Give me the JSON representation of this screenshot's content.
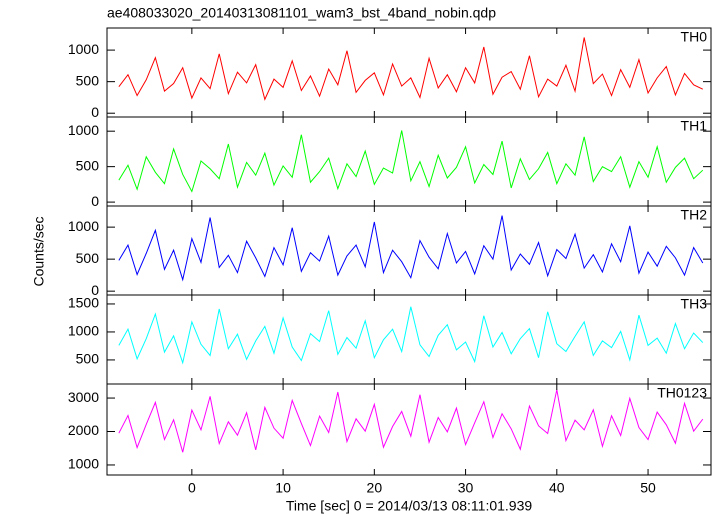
{
  "chart_data": [
    {
      "type": "line",
      "title": "ae408033020_20140313081101_wam3_bst_4band_nobin.qdp",
      "x": [
        -8,
        -7,
        -6,
        -5,
        -4,
        -3,
        -2,
        -1,
        0,
        1,
        2,
        3,
        4,
        5,
        6,
        7,
        8,
        9,
        10,
        11,
        12,
        13,
        14,
        15,
        16,
        17,
        18,
        19,
        20,
        21,
        22,
        23,
        24,
        25,
        26,
        27,
        28,
        29,
        30,
        31,
        32,
        33,
        34,
        35,
        36,
        37,
        38,
        39,
        40,
        41,
        42,
        43,
        44,
        45,
        46,
        47,
        48,
        49,
        50,
        51,
        52,
        53,
        54,
        55,
        56
      ],
      "series": [
        {
          "name": "TH0",
          "color": "#ff0000",
          "values": [
            420,
            610,
            280,
            530,
            880,
            350,
            470,
            720,
            240,
            560,
            390,
            940,
            310,
            650,
            480,
            770,
            220,
            540,
            410,
            830,
            360,
            590,
            270,
            700,
            450,
            990,
            330,
            520,
            640,
            290,
            780,
            430,
            560,
            250,
            870,
            400,
            610,
            340,
            720,
            480,
            1050,
            300,
            570,
            660,
            380,
            910,
            260,
            540,
            430,
            760,
            350,
            1200,
            470,
            620,
            280,
            690,
            410,
            850,
            320,
            560,
            740,
            290,
            630,
            450,
            380
          ]
        }
      ],
      "xlim": [
        -9.3,
        56.9
      ],
      "xticks": [
        0,
        10,
        20,
        30,
        40,
        50
      ],
      "ylim": [
        -60,
        1350
      ],
      "yticks": [
        0,
        500,
        1000
      ]
    },
    {
      "type": "line",
      "x": [
        -8,
        -7,
        -6,
        -5,
        -4,
        -3,
        -2,
        -1,
        0,
        1,
        2,
        3,
        4,
        5,
        6,
        7,
        8,
        9,
        10,
        11,
        12,
        13,
        14,
        15,
        16,
        17,
        18,
        19,
        20,
        21,
        22,
        23,
        24,
        25,
        26,
        27,
        28,
        29,
        30,
        31,
        32,
        33,
        34,
        35,
        36,
        37,
        38,
        39,
        40,
        41,
        42,
        43,
        44,
        45,
        46,
        47,
        48,
        49,
        50,
        51,
        52,
        53,
        54,
        55,
        56
      ],
      "series": [
        {
          "name": "TH1",
          "color": "#00ff00",
          "values": [
            310,
            520,
            180,
            640,
            420,
            260,
            750,
            390,
            150,
            580,
            470,
            330,
            820,
            210,
            560,
            380,
            690,
            240,
            510,
            350,
            950,
            280,
            430,
            620,
            190,
            540,
            360,
            720,
            250,
            480,
            410,
            1010,
            300,
            570,
            220,
            660,
            340,
            490,
            780,
            270,
            530,
            390,
            860,
            200,
            610,
            320,
            470,
            700,
            260,
            540,
            380,
            920,
            290,
            500,
            430,
            640,
            210,
            570,
            350,
            780,
            280,
            490,
            620,
            330,
            450
          ]
        }
      ],
      "xlim": [
        -9.3,
        56.9
      ],
      "xticks": [
        0,
        10,
        20,
        30,
        40,
        50
      ],
      "ylim": [
        -55,
        1200
      ],
      "yticks": [
        0,
        500,
        1000
      ]
    },
    {
      "type": "line",
      "y_label": "Counts/sec",
      "x": [
        -8,
        -7,
        -6,
        -5,
        -4,
        -3,
        -2,
        -1,
        0,
        1,
        2,
        3,
        4,
        5,
        6,
        7,
        8,
        9,
        10,
        11,
        12,
        13,
        14,
        15,
        16,
        17,
        18,
        19,
        20,
        21,
        22,
        23,
        24,
        25,
        26,
        27,
        28,
        29,
        30,
        31,
        32,
        33,
        34,
        35,
        36,
        37,
        38,
        39,
        40,
        41,
        42,
        43,
        44,
        45,
        46,
        47,
        48,
        49,
        50,
        51,
        52,
        53,
        54,
        55,
        56
      ],
      "series": [
        {
          "name": "TH2",
          "color": "#0000ff",
          "values": [
            480,
            720,
            260,
            590,
            950,
            340,
            640,
            180,
            820,
            450,
            1150,
            370,
            560,
            290,
            780,
            520,
            230,
            680,
            410,
            990,
            310,
            600,
            470,
            860,
            250,
            550,
            720,
            380,
            1080,
            290,
            640,
            460,
            210,
            790,
            530,
            350,
            900,
            440,
            620,
            270,
            710,
            500,
            1180,
            330,
            580,
            420,
            760,
            240,
            650,
            510,
            890,
            360,
            570,
            300,
            740,
            460,
            1020,
            280,
            610,
            390,
            700,
            520,
            250,
            680,
            440
          ]
        }
      ],
      "xlim": [
        -9.3,
        56.9
      ],
      "xticks": [
        0,
        10,
        20,
        30,
        40,
        50
      ],
      "ylim": [
        -60,
        1330
      ],
      "yticks": [
        0,
        500,
        1000
      ]
    },
    {
      "type": "line",
      "x": [
        -8,
        -7,
        -6,
        -5,
        -4,
        -3,
        -2,
        -1,
        0,
        1,
        2,
        3,
        4,
        5,
        6,
        7,
        8,
        9,
        10,
        11,
        12,
        13,
        14,
        15,
        16,
        17,
        18,
        19,
        20,
        21,
        22,
        23,
        24,
        25,
        26,
        27,
        28,
        29,
        30,
        31,
        32,
        33,
        34,
        35,
        36,
        37,
        38,
        39,
        40,
        41,
        42,
        43,
        44,
        45,
        46,
        47,
        48,
        49,
        50,
        51,
        52,
        53,
        54,
        55,
        56
      ],
      "series": [
        {
          "name": "TH3",
          "color": "#00ffff",
          "values": [
            760,
            1050,
            520,
            880,
            1320,
            640,
            930,
            450,
            1180,
            780,
            580,
            1410,
            700,
            960,
            510,
            840,
            1100,
            620,
            1250,
            730,
            490,
            970,
            830,
            1380,
            600,
            900,
            710,
            1200,
            540,
            860,
            1050,
            650,
            1450,
            770,
            560,
            940,
            1130,
            680,
            820,
            470,
            1290,
            730,
            990,
            610,
            880,
            1060,
            540,
            1360,
            790,
            650,
            920,
            1180,
            580,
            840,
            720,
            1010,
            500,
            1300,
            760,
            890,
            620,
            1150,
            700,
            980,
            810
          ]
        }
      ],
      "xlim": [
        -9.3,
        56.9
      ],
      "xticks": [
        0,
        10,
        20,
        30,
        40,
        50
      ],
      "ylim": [
        70,
        1660
      ],
      "yticks": [
        500,
        1000,
        1500
      ]
    },
    {
      "type": "line",
      "x_label": "Time [sec] 0 = 2014/03/13 08:11:01.939",
      "x": [
        -8,
        -7,
        -6,
        -5,
        -4,
        -3,
        -2,
        -1,
        0,
        1,
        2,
        3,
        4,
        5,
        6,
        7,
        8,
        9,
        10,
        11,
        12,
        13,
        14,
        15,
        16,
        17,
        18,
        19,
        20,
        21,
        22,
        23,
        24,
        25,
        26,
        27,
        28,
        29,
        30,
        31,
        32,
        33,
        34,
        35,
        36,
        37,
        38,
        39,
        40,
        41,
        42,
        43,
        44,
        45,
        46,
        47,
        48,
        49,
        50,
        51,
        52,
        53,
        54,
        55,
        56
      ],
      "series": [
        {
          "name": "TH0123",
          "color": "#ff00ff",
          "values": [
            1950,
            2480,
            1520,
            2210,
            2870,
            1760,
            2350,
            1380,
            2640,
            2050,
            3050,
            1640,
            2290,
            1890,
            2560,
            1450,
            2720,
            2100,
            1800,
            2930,
            2240,
            1580,
            2460,
            1970,
            3180,
            1700,
            2380,
            2010,
            2810,
            1530,
            2150,
            2600,
            1860,
            3100,
            1680,
            2420,
            1990,
            2700,
            1610,
            2260,
            2890,
            1820,
            2530,
            2080,
            1470,
            2760,
            2170,
            1940,
            3250,
            1730,
            2340,
            2050,
            2650,
            1560,
            2470,
            1880,
            2990,
            2120,
            1760,
            2580,
            2200,
            1650,
            2840,
            2010,
            2370
          ]
        }
      ],
      "xlim": [
        -9.3,
        56.9
      ],
      "xticks": [
        0,
        10,
        20,
        30,
        40,
        50
      ],
      "ylim": [
        700,
        3420
      ],
      "yticks": [
        1000,
        2000,
        3000
      ]
    }
  ]
}
